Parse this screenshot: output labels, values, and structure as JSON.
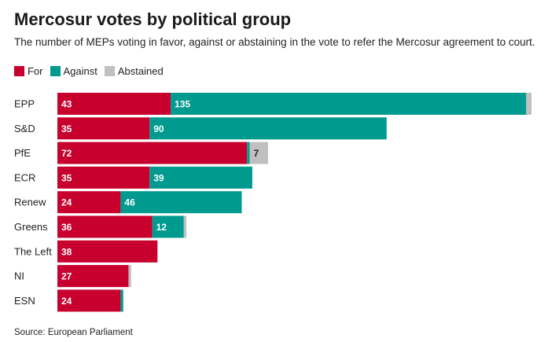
{
  "title": "Mercosur votes by political group",
  "subtitle": "The number of MEPs voting in favor, against or abstaining in the vote to refer the Mercosur agreement to court.",
  "source": "Source: European Parliament",
  "legend": [
    {
      "label": "For",
      "color": "#c8002d"
    },
    {
      "label": "Against",
      "color": "#009a8f"
    },
    {
      "label": "Abstained",
      "color": "#c0c0c0"
    }
  ],
  "chart_data": {
    "type": "bar",
    "orientation": "horizontal",
    "stacked": true,
    "categories": [
      "EPP",
      "S&D",
      "PfE",
      "ECR",
      "Renew",
      "Greens",
      "The Left",
      "NI",
      "ESN"
    ],
    "series": [
      {
        "name": "For",
        "color": "#c8002d",
        "values": [
          43,
          35,
          72,
          35,
          24,
          36,
          38,
          27,
          24
        ],
        "labels": [
          "43",
          "35",
          "72",
          "35",
          "24",
          "36",
          "38",
          "27",
          "24"
        ]
      },
      {
        "name": "Against",
        "color": "#009a8f",
        "values": [
          135,
          90,
          1,
          39,
          46,
          12,
          0,
          0,
          1
        ],
        "labels": [
          "135",
          "90",
          "",
          "39",
          "46",
          "12",
          "",
          "",
          ""
        ]
      },
      {
        "name": "Abstained",
        "color": "#c0c0c0",
        "values": [
          2,
          0,
          7,
          0,
          0,
          1,
          0,
          1,
          0
        ],
        "labels": [
          "",
          "",
          "7",
          "",
          "",
          "",
          "",
          "",
          ""
        ]
      }
    ],
    "xlim": [
      0,
      180
    ],
    "grid": false,
    "legend_position": "top-left"
  }
}
